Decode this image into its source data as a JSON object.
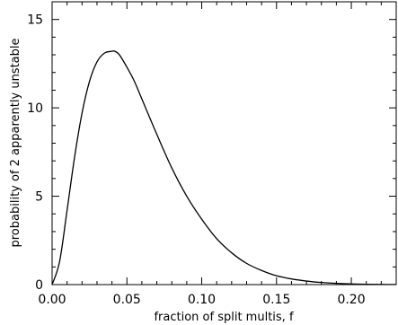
{
  "chart_data": {
    "type": "line",
    "title": "",
    "xlabel": "fraction of split multis, f",
    "ylabel": "probability of 2 apparently unstable",
    "xlim": [
      0.0,
      0.23
    ],
    "ylim": [
      0,
      16
    ],
    "x_ticks": [
      0.0,
      0.05,
      0.1,
      0.15,
      0.2
    ],
    "x_tick_labels": [
      "0.00",
      "0.05",
      "0.10",
      "0.15",
      "0.20"
    ],
    "y_ticks": [
      0,
      5,
      10,
      15
    ],
    "y_tick_labels": [
      "0",
      "5",
      "10",
      "15"
    ],
    "grid": false,
    "series": [
      {
        "color": "#000000",
        "x": [
          0.0,
          0.005,
          0.01,
          0.015,
          0.02,
          0.025,
          0.03,
          0.035,
          0.04,
          0.042,
          0.045,
          0.05,
          0.055,
          0.06,
          0.07,
          0.08,
          0.09,
          0.1,
          0.11,
          0.12,
          0.13,
          0.14,
          0.15,
          0.16,
          0.17,
          0.18,
          0.19,
          0.2,
          0.21,
          0.22,
          0.23
        ],
        "y": [
          0.0,
          1.3,
          4.2,
          7.2,
          9.7,
          11.5,
          12.6,
          13.1,
          13.2,
          13.2,
          13.0,
          12.3,
          11.5,
          10.5,
          8.5,
          6.6,
          5.0,
          3.7,
          2.6,
          1.8,
          1.2,
          0.8,
          0.5,
          0.32,
          0.2,
          0.12,
          0.07,
          0.04,
          0.02,
          0.01,
          0.005
        ]
      }
    ]
  }
}
